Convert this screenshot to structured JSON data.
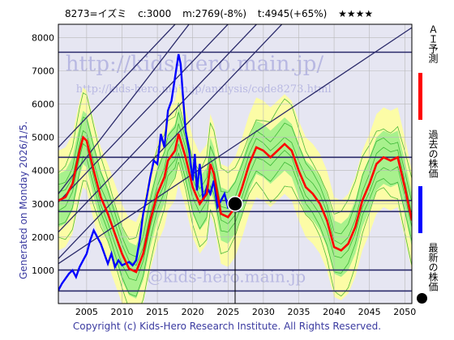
{
  "header": {
    "code": "8273=イズミ",
    "current": "c:3000",
    "mean": "m:2769(-8%)",
    "target": "t:4945(+65%)",
    "stars": "★★★★"
  },
  "side_text": "Generated on Monday 2026/1/5.",
  "footer_text": "Copyright (c) Kids-Hero Research Institute. All Rights Reserved.",
  "watermarks": {
    "main_url": "http://kids-hero.main.jp/",
    "analysis_url": "http://kids-hero.main.jp/analysis/code8273.html",
    "bottom": "@kids-hero.main.jp"
  },
  "legend": [
    {
      "label": "ＡＩ予測",
      "color": "#ff0000",
      "kind": "line"
    },
    {
      "label": "過去の株価",
      "color": "#0000ff",
      "kind": "line"
    },
    {
      "label": "最新の株価",
      "color": "#000000",
      "kind": "dot"
    }
  ],
  "colors": {
    "forecast": "#ff0000",
    "history": "#0000ff",
    "band_outer": "#ffff99",
    "band_inner": "#99ee88",
    "fan_lines": "#22aa22",
    "channel": "#2a2a6a",
    "grid": "#b8b8b8",
    "plot_bg": "#e6e6f2"
  },
  "chart_data": {
    "type": "line",
    "title": "",
    "xlabel": "",
    "ylabel": "",
    "xlim": [
      2001,
      2051
    ],
    "ylim": [
      0,
      8400
    ],
    "x_ticks": [
      2005,
      2010,
      2015,
      2020,
      2025,
      2030,
      2035,
      2040,
      2045,
      2050
    ],
    "y_ticks": [
      1000,
      2000,
      3000,
      4000,
      5000,
      6000,
      7000,
      8000
    ],
    "grid": true,
    "latest_point": {
      "x": 2026.0,
      "y": 3000
    },
    "horizontal_levels": [
      380,
      1010,
      2769,
      3100,
      4400,
      7560
    ],
    "channel_lines": [
      {
        "from": [
          2001,
          1350
        ],
        "to": [
          2051,
          12500
        ]
      },
      {
        "from": [
          2001,
          2150
        ],
        "to": [
          2051,
          13300
        ]
      },
      {
        "from": [
          2001,
          3050
        ],
        "to": [
          2051,
          14200
        ]
      },
      {
        "from": [
          2001,
          4700
        ],
        "to": [
          2051,
          15900
        ]
      },
      {
        "from": [
          2001,
          3300
        ],
        "to": [
          2051,
          17100
        ]
      },
      {
        "from": [
          2001,
          1200
        ],
        "to": [
          2051,
          8300
        ]
      }
    ],
    "series": [
      {
        "name": "過去の株価",
        "x": [
          2001.0,
          2001.5,
          2002.0,
          2002.5,
          2003.0,
          2003.5,
          2004.0,
          2004.5,
          2005.0,
          2005.5,
          2006.0,
          2006.5,
          2007.0,
          2007.5,
          2008.0,
          2008.5,
          2009.0,
          2009.5,
          2010.0,
          2010.5,
          2011.0,
          2011.5,
          2012.0,
          2012.5,
          2013.0,
          2013.5,
          2014.0,
          2014.5,
          2015.0,
          2015.5,
          2016.0,
          2016.5,
          2017.0,
          2017.5,
          2018.0,
          2018.3,
          2018.6,
          2019.0,
          2019.5,
          2020.0,
          2020.3,
          2020.6,
          2021.0,
          2021.5,
          2022.0,
          2022.5,
          2023.0,
          2023.5,
          2024.0,
          2024.5,
          2025.0,
          2025.5,
          2026.0
        ],
        "y": [
          400,
          600,
          750,
          900,
          1000,
          800,
          1100,
          1300,
          1500,
          1900,
          2200,
          2000,
          1800,
          1500,
          1200,
          1500,
          1100,
          1300,
          1150,
          1200,
          1250,
          1150,
          1300,
          1900,
          2700,
          3200,
          3800,
          4300,
          4200,
          5100,
          4700,
          5800,
          6100,
          6800,
          7500,
          7200,
          6300,
          5200,
          4600,
          3700,
          4500,
          3400,
          4200,
          3100,
          3500,
          3300,
          3700,
          2900,
          3100,
          3300,
          2900,
          3000,
          3000
        ]
      },
      {
        "name": "ＡＩ予測",
        "x": [
          2001.0,
          2002.0,
          2003.0,
          2004.0,
          2004.5,
          2005.0,
          2006.0,
          2007.0,
          2008.0,
          2009.0,
          2010.0,
          2011.0,
          2012.0,
          2013.0,
          2014.0,
          2015.0,
          2016.0,
          2016.5,
          2017.5,
          2018.0,
          2019.0,
          2020.0,
          2021.0,
          2022.0,
          2022.5,
          2023.0,
          2024.0,
          2025.0,
          2026.0,
          2027.0,
          2028.0,
          2029.0,
          2030.0,
          2031.0,
          2032.0,
          2033.0,
          2034.0,
          2035.0,
          2036.0,
          2037.0,
          2038.0,
          2039.0,
          2040.0,
          2041.0,
          2042.0,
          2043.0,
          2044.0,
          2045.0,
          2046.0,
          2047.0,
          2048.0,
          2049.0,
          2050.0,
          2051.0
        ],
        "y": [
          3100,
          3200,
          3600,
          4600,
          5000,
          4900,
          4000,
          3200,
          2700,
          2100,
          1500,
          1050,
          950,
          1500,
          2500,
          3300,
          3800,
          4300,
          4600,
          5100,
          4400,
          3500,
          3000,
          3300,
          4200,
          3900,
          2700,
          2600,
          2900,
          3500,
          4200,
          4700,
          4600,
          4400,
          4600,
          4800,
          4600,
          4000,
          3500,
          3300,
          3000,
          2500,
          1700,
          1600,
          1800,
          2300,
          3100,
          3600,
          4200,
          4400,
          4300,
          4400,
          3500,
          2500
        ]
      }
    ]
  }
}
